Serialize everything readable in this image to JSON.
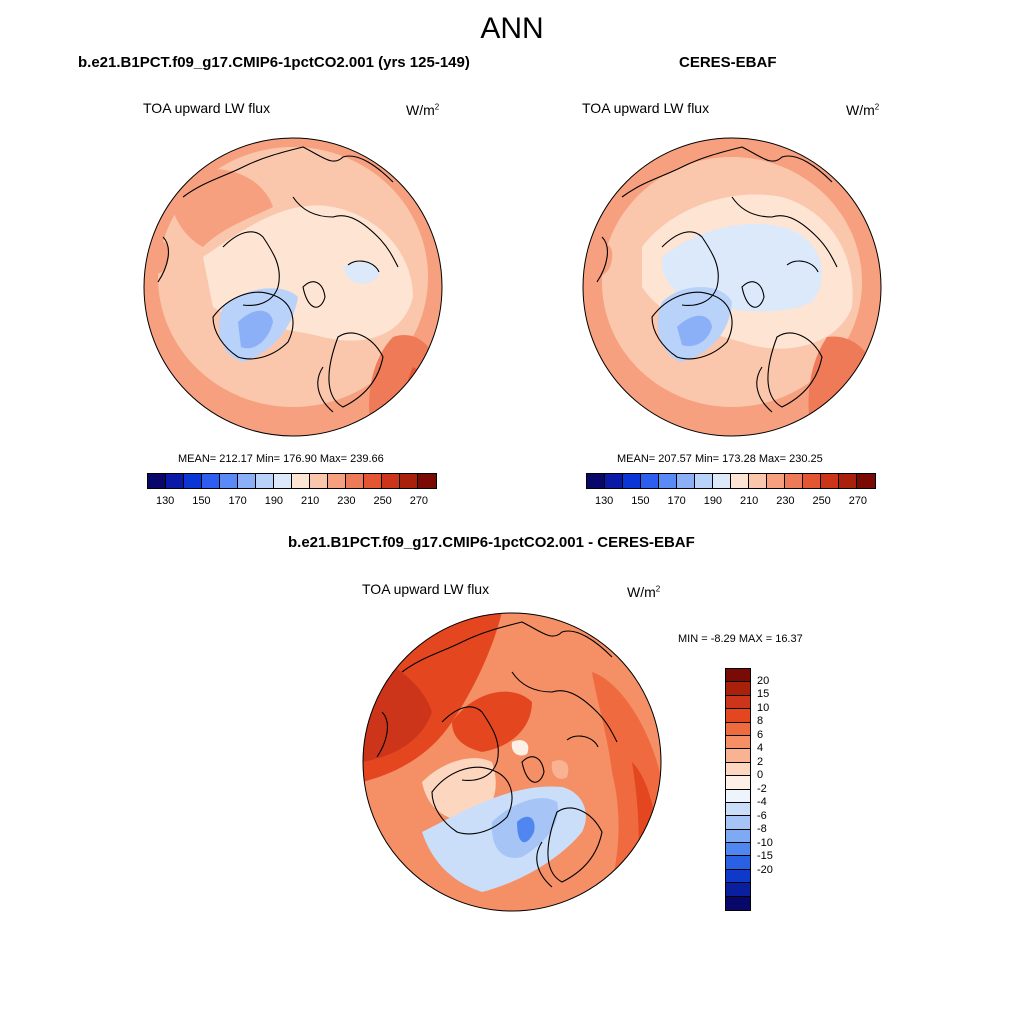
{
  "page": {
    "title": "ANN"
  },
  "panels": [
    {
      "title": "b.e21.B1PCT.f09_g17.CMIP6-1pctCO2.001 (yrs 125-149)",
      "variable": "TOA upward LW flux",
      "units_base": "W/m",
      "units_exp": "2",
      "stats_text": "MEAN= 212.17  Min= 176.90  Max= 239.66",
      "stats": {
        "mean": 212.17,
        "min": 176.9,
        "max": 239.66
      },
      "colorbar_ticks": [
        "130",
        "150",
        "170",
        "190",
        "210",
        "230",
        "250",
        "270"
      ]
    },
    {
      "title": "CERES-EBAF",
      "variable": "TOA upward LW flux",
      "units_base": "W/m",
      "units_exp": "2",
      "stats_text": "MEAN= 207.57  Min= 173.28  Max= 230.25",
      "stats": {
        "mean": 207.57,
        "min": 173.28,
        "max": 230.25
      },
      "colorbar_ticks": [
        "130",
        "150",
        "170",
        "190",
        "210",
        "230",
        "250",
        "270"
      ]
    }
  ],
  "diff_panel": {
    "title": "b.e21.B1PCT.f09_g17.CMIP6-1pctCO2.001 - CERES-EBAF",
    "variable": "TOA upward LW flux",
    "units_base": "W/m",
    "units_exp": "2",
    "stats_text": "MIN =  -8.29 MAX =  16.37",
    "stats": {
      "min": -8.29,
      "max": 16.37
    },
    "colorbar_ticks": [
      "20",
      "15",
      "10",
      "8",
      "6",
      "4",
      "2",
      "0",
      "-2",
      "-4",
      "-6",
      "-8",
      "-10",
      "-15",
      "-20"
    ]
  },
  "colors": {
    "abs_palette": [
      "#08086b",
      "#0a1aa6",
      "#0c35d6",
      "#2c5ff0",
      "#5a8af5",
      "#8bb0f7",
      "#b9d2f9",
      "#dbe9fb",
      "#fde4d3",
      "#fbc7ac",
      "#f6a07f",
      "#ef7a57",
      "#e45633",
      "#cc3519",
      "#a9200b",
      "#7a0b04"
    ],
    "diff_palette": [
      "#7a0b04",
      "#a9200b",
      "#cc3519",
      "#e4471f",
      "#f06a3f",
      "#f58f66",
      "#f9b393",
      "#fcd6bf",
      "#fdf0e6",
      "#eef4fc",
      "#cadef9",
      "#a6c5f6",
      "#7ea9f3",
      "#4f86ef",
      "#2a61e4",
      "#0f39c9",
      "#0a1fa0",
      "#08086b"
    ]
  }
}
